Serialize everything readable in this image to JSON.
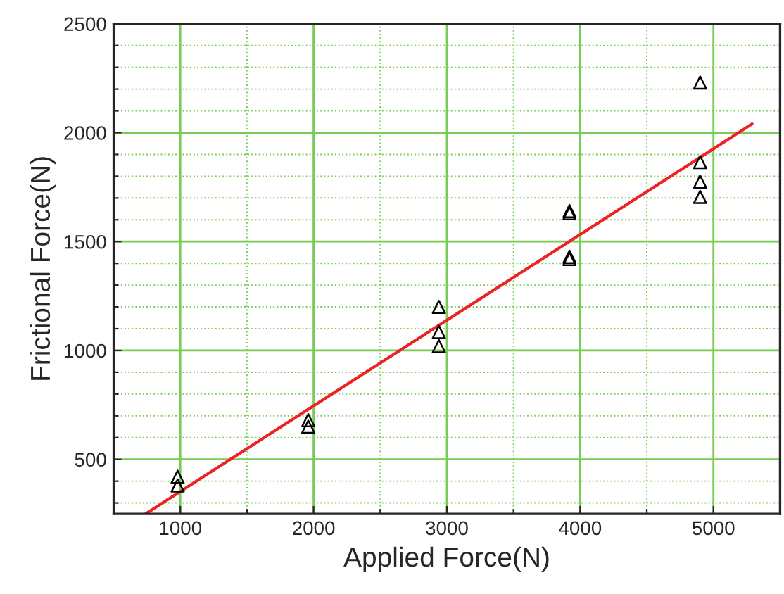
{
  "chart_data": {
    "type": "scatter",
    "xlabel": "Applied Force(N)",
    "ylabel": "Frictional Force(N)",
    "xlim": [
      500,
      5500
    ],
    "ylim": [
      250,
      2500
    ],
    "xticks": [
      1000,
      {
        "value": 1500,
        "label": null
      },
      2000,
      {
        "value": 2500,
        "label": null
      },
      3000,
      {
        "value": 3500,
        "label": null
      },
      4000,
      {
        "value": 4500,
        "label": null
      },
      5000
    ],
    "yticks": [
      {
        "value": 300,
        "label": null
      },
      {
        "value": 400,
        "label": null
      },
      500,
      {
        "value": 600,
        "label": null
      },
      {
        "value": 700,
        "label": null
      },
      {
        "value": 800,
        "label": null
      },
      {
        "value": 900,
        "label": null
      },
      1000,
      {
        "value": 1100,
        "label": null
      },
      {
        "value": 1200,
        "label": null
      },
      {
        "value": 1300,
        "label": null
      },
      {
        "value": 1400,
        "label": null
      },
      1500,
      {
        "value": 1600,
        "label": null
      },
      {
        "value": 1700,
        "label": null
      },
      {
        "value": 1800,
        "label": null
      },
      {
        "value": 1900,
        "label": null
      },
      2000,
      {
        "value": 2100,
        "label": null
      },
      {
        "value": 2200,
        "label": null
      },
      {
        "value": 2300,
        "label": null
      },
      {
        "value": 2400,
        "label": null
      },
      2500
    ],
    "grid": true,
    "series": [
      {
        "color": "#000000",
        "marker": "triangle",
        "x": [
          980,
          980,
          1960,
          1960,
          2940,
          2940,
          2940,
          3920,
          3920,
          3920,
          3920,
          4900,
          4900,
          4900,
          4900
        ],
        "values": [
          420,
          380,
          680,
          650,
          1200,
          1085,
          1020,
          1640,
          1630,
          1430,
          1420,
          2230,
          1865,
          1775,
          1705
        ]
      },
      {
        "type": "line",
        "color": "#ee2222",
        "marker": "none",
        "line_style": "solid",
        "x": [
          740,
          5290
        ],
        "values": [
          250,
          2040
        ]
      }
    ]
  }
}
